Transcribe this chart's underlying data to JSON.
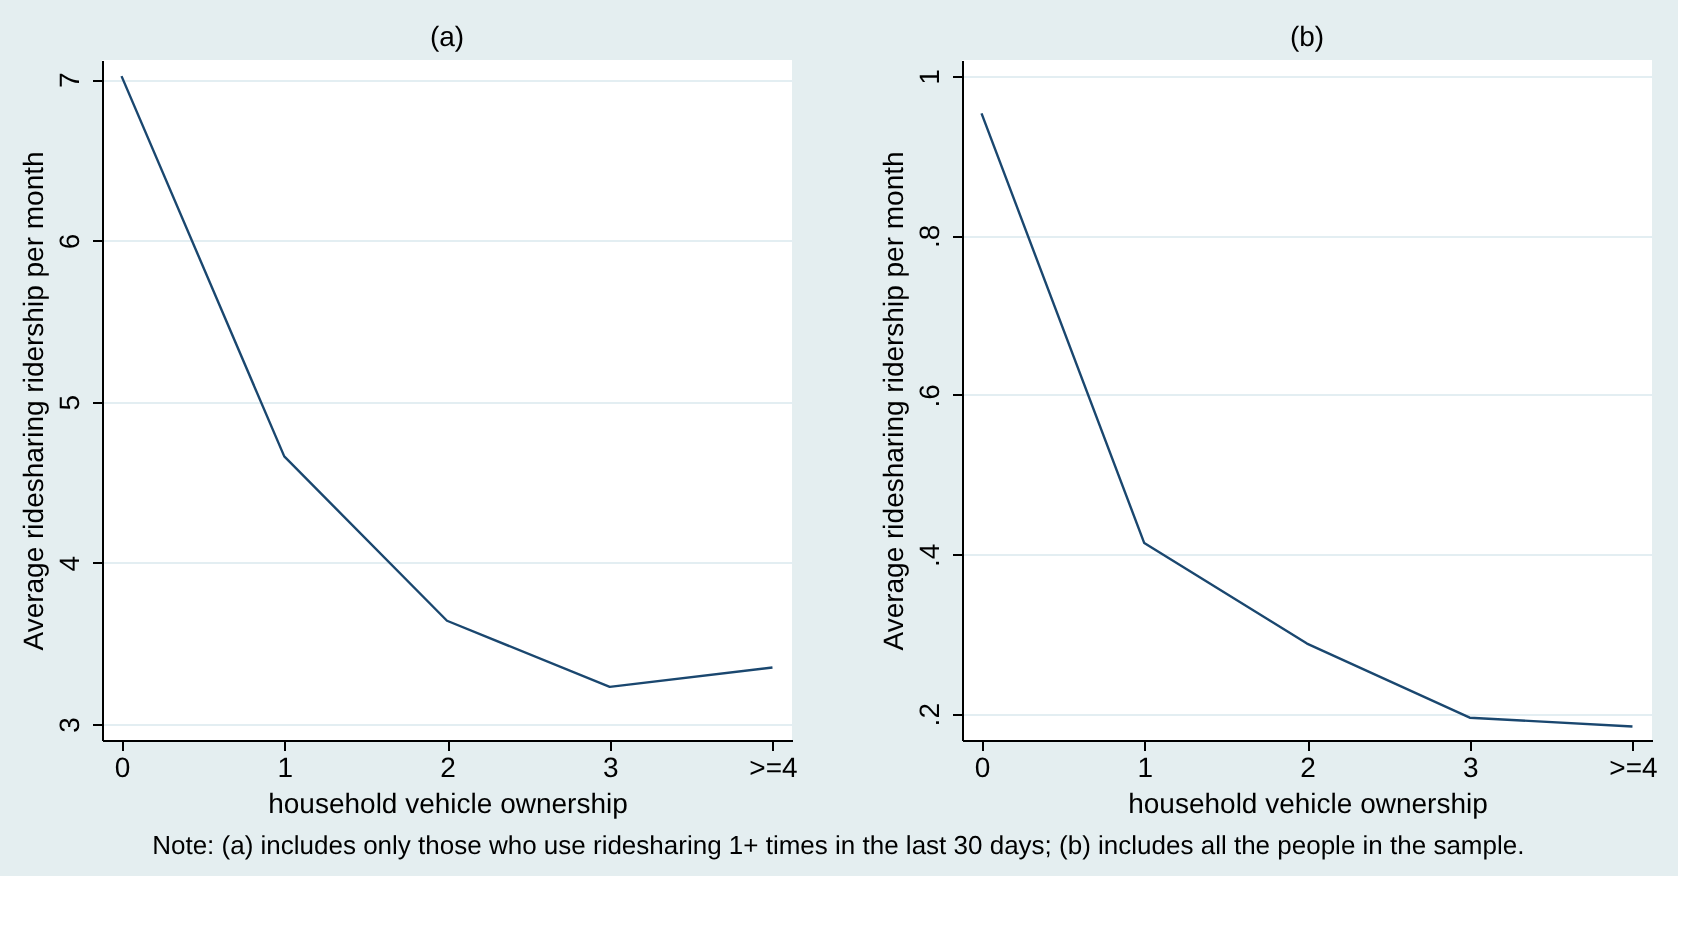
{
  "chart_data": [
    {
      "type": "line",
      "title": "(a)",
      "xlabel": "household vehicle ownership",
      "ylabel": "Average ridesharing ridership per month",
      "categories": [
        "0",
        "1",
        "2",
        "3",
        ">=4"
      ],
      "series": [
        {
          "color": "#1a476f",
          "values": [
            7.02,
            4.66,
            3.64,
            3.23,
            3.35
          ]
        }
      ],
      "ylim": [
        2.9,
        7.12
      ],
      "yticks": [
        3,
        4,
        5,
        6,
        7
      ],
      "grid": "y",
      "marker": "none",
      "line_style": "solid",
      "annotations": [
        "Note: (a) includes only those who use ridesharing 1+ times in the last 30 days; (b) includes all the people in the sample."
      ]
    },
    {
      "type": "line",
      "title": "(b)",
      "xlabel": "household vehicle ownership",
      "ylabel": "Average ridesharing ridership per month",
      "categories": [
        "0",
        "1",
        "2",
        "3",
        ">=4"
      ],
      "series": [
        {
          "color": "#1a476f",
          "values": [
            0.953,
            0.414,
            0.288,
            0.195,
            0.184
          ]
        }
      ],
      "ylim": [
        0.167,
        1.02
      ],
      "yticks": [
        {
          "value": 0.2,
          "label": ".2"
        },
        {
          "value": 0.4,
          "label": ".4"
        },
        {
          "value": 0.6,
          "label": ".6"
        },
        {
          "value": 0.8,
          "label": ".8"
        },
        {
          "value": 1,
          "label": "1"
        }
      ],
      "grid": "y",
      "marker": "none",
      "line_style": "solid"
    }
  ]
}
